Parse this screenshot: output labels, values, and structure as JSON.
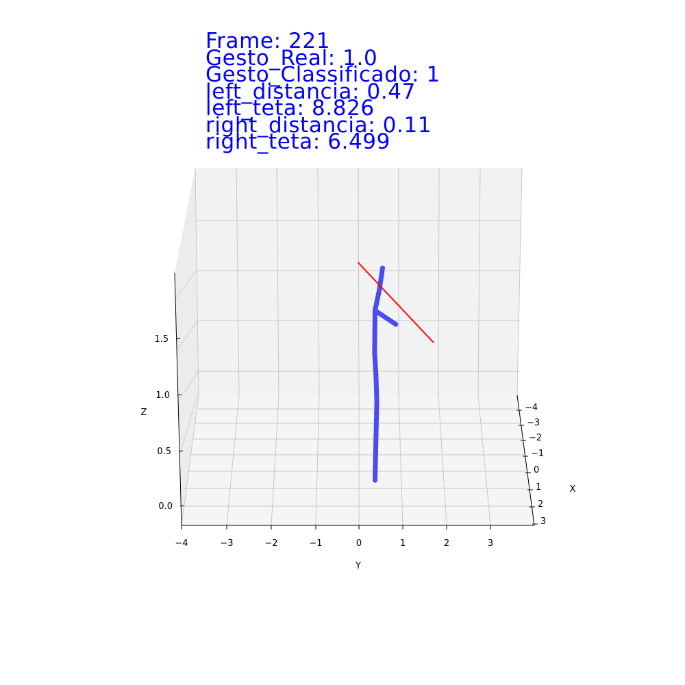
{
  "overlay": {
    "lines": [
      "Frame: 221",
      "Gesto_Real: 1.0",
      "Gesto_Classificado: 1",
      "left_distancia: 0.47",
      "left_teta: 8.826",
      "right_distancia: 0.11",
      "right_teta: 6.499"
    ],
    "color": "#0000ff"
  },
  "chart_data": {
    "type": "line3d",
    "view": "elevation ~10 degrees, viewed from -X side (Y axis horizontal, X axis receding)",
    "axes": {
      "x": {
        "label": "X",
        "ticks": [
          -4,
          -3,
          -2,
          -1,
          0,
          1,
          2,
          3
        ],
        "range": [
          -4.3,
          3.3
        ]
      },
      "y": {
        "label": "Y",
        "ticks": [
          -4,
          -3,
          -2,
          -1,
          0,
          1,
          2,
          3
        ],
        "range": [
          -4.0,
          4.0
        ]
      },
      "z": {
        "label": "Z",
        "ticks": [
          0.0,
          0.5,
          1.0,
          1.5
        ],
        "tick_labels": [
          "0.0",
          "0.5",
          "1.0",
          "1.5"
        ],
        "range": [
          -0.1,
          2.0
        ]
      }
    },
    "grid": true,
    "series": [
      {
        "color": "#4b4bf0",
        "style": "thick line (skeleton)",
        "segments": [
          [
            [
              0,
              0.38,
              0.25
            ],
            [
              0,
              0.42,
              1.0
            ]
          ],
          [
            [
              0,
              0.42,
              1.0
            ],
            [
              0,
              0.4,
              1.25
            ]
          ],
          [
            [
              0,
              0.4,
              1.25
            ],
            [
              0,
              0.37,
              1.45
            ]
          ],
          [
            [
              0,
              0.37,
              1.45
            ],
            [
              0,
              0.38,
              1.85
            ]
          ],
          [
            [
              0,
              0.38,
              1.85
            ],
            [
              0,
              0.48,
              2.05
            ]
          ],
          [
            [
              0,
              0.48,
              2.05
            ],
            [
              0,
              0.55,
              2.25
            ]
          ],
          [
            [
              0,
              0.38,
              1.85
            ],
            [
              0,
              0.85,
              1.72
            ]
          ]
        ]
      },
      {
        "color": "#ff0000",
        "style": "thin line",
        "segments": [
          [
            [
              0,
              0.0,
              2.3
            ],
            [
              0,
              1.7,
              1.55
            ]
          ]
        ]
      }
    ]
  }
}
